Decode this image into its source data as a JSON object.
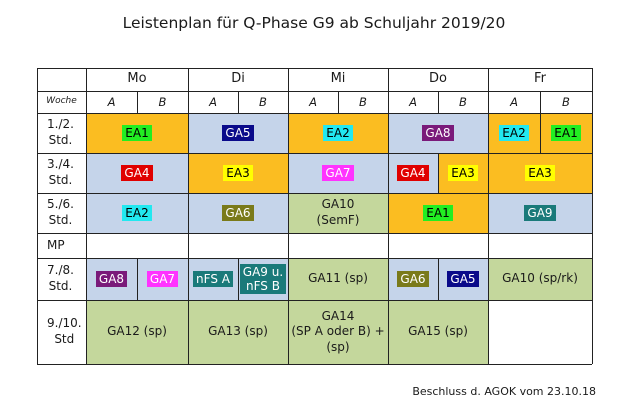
{
  "title": "Leistenplan für Q-Phase G9 ab Schuljahr 2019/20",
  "footer": "Beschluss d. AGOK vom 23.10.18",
  "colors": {
    "orange": "#fbbd21",
    "blue": "#c5d4ea",
    "green": "#c4d79c"
  },
  "table": {
    "days": [
      "Mo",
      "Di",
      "Mi",
      "Do",
      "Fr"
    ],
    "woche_label": "Woche",
    "ab": [
      "A",
      "B"
    ],
    "rows": [
      {
        "label": "1./2.\nStd.",
        "cells": [
          {
            "span": [
              1,
              2
            ],
            "bg": "orange",
            "badges": [
              {
                "text": "EA1",
                "bg": "#22ee22",
                "fg": "#000000"
              }
            ]
          },
          {
            "span": [
              3,
              4
            ],
            "bg": "blue",
            "badges": [
              {
                "text": "GA5",
                "bg": "#0a0a8a",
                "fg": "#ffffff"
              }
            ]
          },
          {
            "span": [
              5,
              6
            ],
            "bg": "orange",
            "badges": [
              {
                "text": "EA2",
                "bg": "#22e8f0",
                "fg": "#000000"
              }
            ]
          },
          {
            "span": [
              7,
              8
            ],
            "bg": "blue",
            "badges": [
              {
                "text": "GA8",
                "bg": "#7a1a7a",
                "fg": "#ffffff"
              }
            ]
          },
          {
            "span": [
              9,
              9
            ],
            "bg": "orange",
            "badges": [
              {
                "text": "EA2",
                "bg": "#22e8f0",
                "fg": "#000000"
              }
            ]
          },
          {
            "span": [
              10,
              10
            ],
            "bg": "orange",
            "badges": [
              {
                "text": "EA1",
                "bg": "#22ee22",
                "fg": "#000000"
              }
            ]
          }
        ]
      },
      {
        "label": "3./4.\nStd.",
        "cells": [
          {
            "span": [
              1,
              2
            ],
            "bg": "blue",
            "badges": [
              {
                "text": "GA4",
                "bg": "#e00000",
                "fg": "#ffffff"
              }
            ]
          },
          {
            "span": [
              3,
              4
            ],
            "bg": "orange",
            "badges": [
              {
                "text": "EA3",
                "bg": "#ffff00",
                "fg": "#000000"
              }
            ]
          },
          {
            "span": [
              5,
              6
            ],
            "bg": "blue",
            "badges": [
              {
                "text": "GA7",
                "bg": "#ff33ff",
                "fg": "#ffffff"
              }
            ]
          },
          {
            "span": [
              7,
              7
            ],
            "bg": "blue",
            "badges": [
              {
                "text": "GA4",
                "bg": "#e00000",
                "fg": "#ffffff"
              }
            ]
          },
          {
            "span": [
              8,
              8
            ],
            "bg": "orange",
            "badges": [
              {
                "text": "EA3",
                "bg": "#ffff00",
                "fg": "#000000"
              }
            ]
          },
          {
            "span": [
              9,
              10
            ],
            "bg": "orange",
            "badges": [
              {
                "text": "EA3",
                "bg": "#ffff00",
                "fg": "#000000"
              }
            ]
          }
        ]
      },
      {
        "label": "5./6.\nStd.",
        "cells": [
          {
            "span": [
              1,
              2
            ],
            "bg": "blue",
            "badges": [
              {
                "text": "EA2",
                "bg": "#22e8f0",
                "fg": "#000000"
              }
            ]
          },
          {
            "span": [
              3,
              4
            ],
            "bg": "blue",
            "badges": [
              {
                "text": "GA6",
                "bg": "#7a7a1a",
                "fg": "#ffffff"
              }
            ]
          },
          {
            "span": [
              5,
              6
            ],
            "bg": "green",
            "text": "GA10\n(SemF)"
          },
          {
            "span": [
              7,
              8
            ],
            "bg": "orange",
            "badges": [
              {
                "text": "EA1",
                "bg": "#22ee22",
                "fg": "#000000"
              }
            ]
          },
          {
            "span": [
              9,
              10
            ],
            "bg": "blue",
            "badges": [
              {
                "text": "GA9",
                "bg": "#1a7a7a",
                "fg": "#ffffff"
              }
            ]
          }
        ]
      },
      {
        "label": "MP",
        "cells": []
      },
      {
        "label": "7./8.\nStd.",
        "cells": [
          {
            "span": [
              1,
              1
            ],
            "bg": "blue",
            "badges": [
              {
                "text": "GA8",
                "bg": "#7a1a7a",
                "fg": "#ffffff"
              }
            ]
          },
          {
            "span": [
              2,
              2
            ],
            "bg": "blue",
            "badges": [
              {
                "text": "GA7",
                "bg": "#ff33ff",
                "fg": "#ffffff"
              }
            ]
          },
          {
            "span": [
              3,
              3
            ],
            "bg": "blue",
            "badges": [
              {
                "text": "nFS A",
                "bg": "#1a7a7a",
                "fg": "#ffffff"
              }
            ]
          },
          {
            "span": [
              4,
              4
            ],
            "bg": "blue",
            "badges": [
              {
                "text": "GA9 u.\nnFS B",
                "bg": "#1a7a7a",
                "fg": "#ffffff"
              }
            ]
          },
          {
            "span": [
              5,
              6
            ],
            "bg": "green",
            "text": "GA11 (sp)"
          },
          {
            "span": [
              7,
              7
            ],
            "bg": "blue",
            "badges": [
              {
                "text": "GA6",
                "bg": "#7a7a1a",
                "fg": "#ffffff"
              }
            ]
          },
          {
            "span": [
              8,
              8
            ],
            "bg": "blue",
            "badges": [
              {
                "text": "GA5",
                "bg": "#0a0a8a",
                "fg": "#ffffff"
              }
            ]
          },
          {
            "span": [
              9,
              10
            ],
            "bg": "green",
            "text": "GA10 (sp/rk)"
          }
        ]
      },
      {
        "label": "9./10.\nStd",
        "cells": [
          {
            "span": [
              1,
              2
            ],
            "bg": "green",
            "text": "GA12 (sp)"
          },
          {
            "span": [
              3,
              4
            ],
            "bg": "green",
            "text": "GA13 (sp)"
          },
          {
            "span": [
              5,
              6
            ],
            "bg": "green",
            "text": "GA14\n(SP A oder B) +\n(sp)"
          },
          {
            "span": [
              7,
              8
            ],
            "bg": "green",
            "text": "GA15 (sp)"
          },
          {
            "span": [
              9,
              10
            ],
            "bg": "white",
            "text": ""
          }
        ]
      }
    ]
  }
}
